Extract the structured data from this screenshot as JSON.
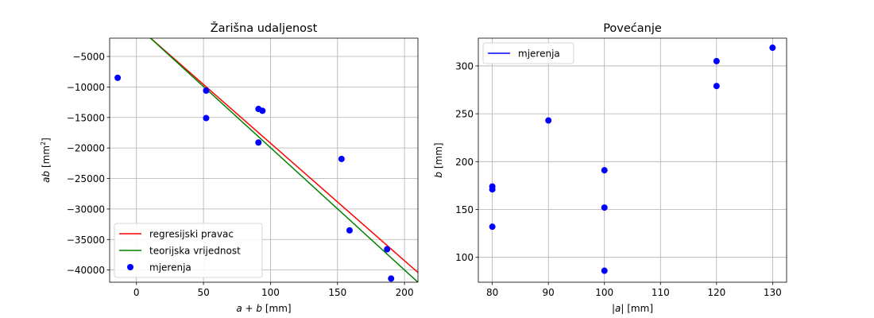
{
  "chart_data": [
    {
      "type": "scatter",
      "title": "Žarišna udaljenost",
      "xlabel_parts": {
        "a": "a",
        "plus": " + ",
        "b": "b",
        "unit": " [mm]"
      },
      "ylabel_parts": {
        "ab": "ab",
        "unit_open": " [mm",
        "sup": "2",
        "unit_close": "]"
      },
      "xlim": [
        -20,
        210
      ],
      "ylim": [
        -42000,
        -2000
      ],
      "xticks": [
        0,
        50,
        100,
        150,
        200
      ],
      "yticks": [
        -5000,
        -10000,
        -15000,
        -20000,
        -25000,
        -30000,
        -35000,
        -40000
      ],
      "grid": true,
      "legend_position": "lower-left",
      "lines": [
        {
          "name": "regresijski pravac",
          "color": "#ff0000",
          "x": [
            8,
            210
          ],
          "y": [
            -1500,
            -40400
          ]
        },
        {
          "name": "teorijska vrijednost",
          "color": "#008000",
          "x": [
            8,
            210
          ],
          "y": [
            -1500,
            -42000
          ]
        }
      ],
      "series": [
        {
          "name": "mjerenja",
          "color": "#0000ff",
          "x": [
            -14,
            52,
            52,
            91,
            94,
            91,
            153,
            159,
            187,
            190
          ],
          "y": [
            -8500,
            -10600,
            -15100,
            -13600,
            -13900,
            -19100,
            -21800,
            -33500,
            -36600,
            -41400
          ]
        }
      ]
    },
    {
      "type": "scatter",
      "title": "Povećanje",
      "xlabel_parts": {
        "a": "|a|",
        "unit": " [mm]"
      },
      "ylabel_parts": {
        "b": "b",
        "unit": " [mm]"
      },
      "xlim": [
        77.5,
        132.5
      ],
      "ylim": [
        74,
        329
      ],
      "xticks": [
        80,
        90,
        100,
        110,
        120,
        130
      ],
      "yticks": [
        100,
        150,
        200,
        250,
        300
      ],
      "grid": true,
      "legend_position": "upper-left",
      "legend": [
        {
          "name": "mjerenja",
          "color": "#0000ff",
          "kind": "line"
        }
      ],
      "series": [
        {
          "name": "mjerenja",
          "color": "#0000ff",
          "x": [
            80,
            80,
            80,
            90,
            100,
            100,
            100,
            120,
            120,
            130
          ],
          "y": [
            174,
            171,
            132,
            243,
            191,
            152,
            86,
            305,
            279,
            319
          ]
        }
      ]
    }
  ]
}
